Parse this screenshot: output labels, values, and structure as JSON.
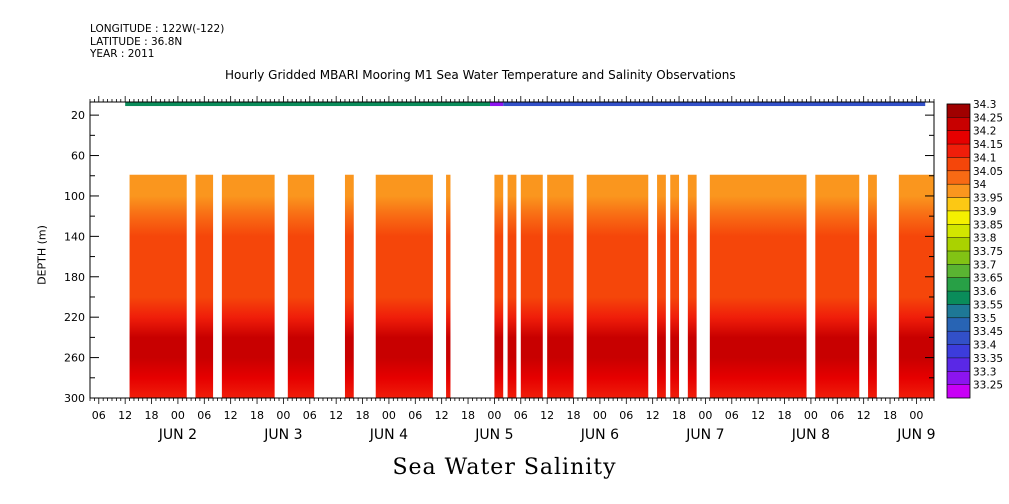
{
  "header": {
    "longitude": "LONGITUDE : 122W(-122)",
    "latitude": "LATITUDE : 36.8N",
    "year": "YEAR : 2011"
  },
  "bottom_title": "Sea Water Salinity",
  "chart_data": {
    "type": "heatmap",
    "title": "Hourly Gridded MBARI Mooring M1 Sea Water Temperature and Salinity Observations",
    "xlabel": "",
    "ylabel": "DEPTH (m)",
    "y_ticks": [
      20,
      60,
      100,
      140,
      180,
      220,
      260,
      300
    ],
    "ylim": [
      300,
      7
    ],
    "xlim": [
      "2011-06-01T04:00",
      "2011-06-09T04:00"
    ],
    "hour_tick_labels": [
      "06",
      "12",
      "18",
      "00",
      "06",
      "12",
      "18",
      "00",
      "06",
      "12",
      "18",
      "00",
      "06",
      "12",
      "18",
      "00",
      "06",
      "12",
      "18",
      "00",
      "06",
      "12",
      "18",
      "00",
      "06",
      "12",
      "18",
      "00",
      "06",
      "12",
      "18",
      "00"
    ],
    "date_tick_labels": [
      "JUN  2",
      "JUN  3",
      "JUN  4",
      "JUN  5",
      "JUN  6",
      "JUN  7",
      "JUN  8",
      "JUN  9"
    ],
    "colorbar_levels": [
      "34.3",
      "34.25",
      "34.2",
      "34.15",
      "34.1",
      "34.05",
      "34",
      "33.95",
      "33.9",
      "33.85",
      "33.8",
      "33.75",
      "33.7",
      "33.65",
      "33.6",
      "33.55",
      "33.5",
      "33.45",
      "33.4",
      "33.35",
      "33.3",
      "33.25"
    ],
    "colorbar_colors": [
      "#a00000",
      "#c80000",
      "#e60000",
      "#f01e0a",
      "#f5460a",
      "#f86a14",
      "#fa961e",
      "#fcc814",
      "#f5f000",
      "#d2e600",
      "#aad200",
      "#82c314",
      "#5ab432",
      "#28a046",
      "#0a8c5a",
      "#1e7896",
      "#2864b4",
      "#3250c8",
      "#3c3cdc",
      "#5a28e6",
      "#8c14f0",
      "#c800f5"
    ],
    "surface_band": {
      "depth_range": [
        7,
        11
      ],
      "segments": [
        {
          "start": "2011-06-01T12:00",
          "end": "2011-06-04T23:00",
          "value": 33.6
        },
        {
          "start": "2011-06-04T23:00",
          "end": "2011-06-05T02:00",
          "value": 33.3
        },
        {
          "start": "2011-06-05T02:00",
          "end": "2011-06-09T02:00",
          "value": 33.45
        }
      ]
    },
    "data_depth_range": [
      79,
      300
    ],
    "depth_profile": [
      {
        "depth": 80,
        "value": 34.0
      },
      {
        "depth": 100,
        "value": 34.0
      },
      {
        "depth": 120,
        "value": 34.05
      },
      {
        "depth": 140,
        "value": 34.1
      },
      {
        "depth": 160,
        "value": 34.1
      },
      {
        "depth": 180,
        "value": 34.1
      },
      {
        "depth": 200,
        "value": 34.1
      },
      {
        "depth": 220,
        "value": 34.15
      },
      {
        "depth": 240,
        "value": 34.25
      },
      {
        "depth": 260,
        "value": 34.25
      },
      {
        "depth": 280,
        "value": 34.2
      },
      {
        "depth": 300,
        "value": 34.15
      }
    ],
    "data_segments": [
      {
        "start": "2011-06-01T13:00",
        "end": "2011-06-02T02:00"
      },
      {
        "start": "2011-06-02T04:00",
        "end": "2011-06-02T08:00"
      },
      {
        "start": "2011-06-02T10:00",
        "end": "2011-06-02T22:00"
      },
      {
        "start": "2011-06-03T01:00",
        "end": "2011-06-03T07:00"
      },
      {
        "start": "2011-06-03T14:00",
        "end": "2011-06-03T16:00"
      },
      {
        "start": "2011-06-03T21:00",
        "end": "2011-06-04T10:00"
      },
      {
        "start": "2011-06-04T13:00",
        "end": "2011-06-04T14:00"
      },
      {
        "start": "2011-06-05T00:00",
        "end": "2011-06-05T02:00"
      },
      {
        "start": "2011-06-05T03:00",
        "end": "2011-06-05T05:00"
      },
      {
        "start": "2011-06-05T06:00",
        "end": "2011-06-05T11:00"
      },
      {
        "start": "2011-06-05T12:00",
        "end": "2011-06-05T18:00"
      },
      {
        "start": "2011-06-05T21:00",
        "end": "2011-06-06T11:00"
      },
      {
        "start": "2011-06-06T13:00",
        "end": "2011-06-06T15:00"
      },
      {
        "start": "2011-06-06T16:00",
        "end": "2011-06-06T18:00"
      },
      {
        "start": "2011-06-06T20:00",
        "end": "2011-06-06T22:00"
      },
      {
        "start": "2011-06-07T01:00",
        "end": "2011-06-07T23:00"
      },
      {
        "start": "2011-06-08T01:00",
        "end": "2011-06-08T11:00"
      },
      {
        "start": "2011-06-08T13:00",
        "end": "2011-06-08T15:00"
      },
      {
        "start": "2011-06-08T20:00",
        "end": "2011-06-09T04:00"
      }
    ]
  }
}
